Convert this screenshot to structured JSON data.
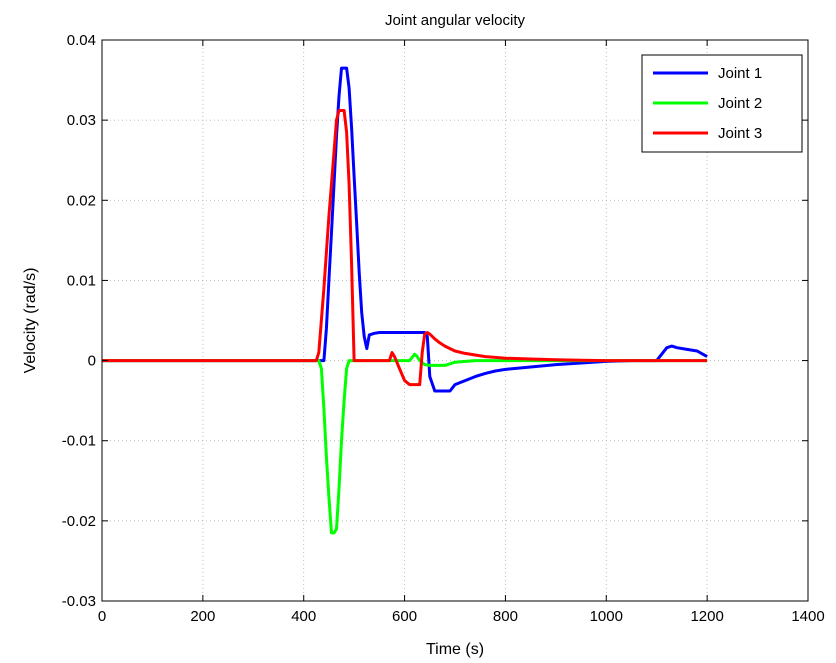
{
  "chart_data": {
    "type": "line",
    "title": "Joint angular velocity",
    "xlabel": "Time (s)",
    "ylabel": "Velocity (rad/s)",
    "xlim": [
      0,
      1400
    ],
    "ylim": [
      -0.03,
      0.04
    ],
    "xticks": [
      0,
      200,
      400,
      600,
      800,
      1000,
      1200,
      1400
    ],
    "yticks": [
      -0.03,
      -0.02,
      -0.01,
      0,
      0.01,
      0.02,
      0.03,
      0.04
    ],
    "xtick_labels": [
      "0",
      "200",
      "400",
      "600",
      "800",
      "1000",
      "1200",
      "1400"
    ],
    "ytick_labels": [
      "-0.03",
      "-0.02",
      "-0.01",
      "0",
      "0.01",
      "0.02",
      "0.03",
      "0.04"
    ],
    "grid": true,
    "legend_position": "top-right",
    "series": [
      {
        "name": "Joint 1",
        "color": "#0000ff",
        "x": [
          0,
          440,
          445,
          450,
          455,
          460,
          465,
          470,
          475,
          480,
          485,
          490,
          495,
          500,
          505,
          510,
          515,
          520,
          525,
          530,
          540,
          550,
          560,
          570,
          580,
          590,
          600,
          610,
          620,
          630,
          640,
          645,
          650,
          660,
          670,
          680,
          690,
          700,
          720,
          740,
          760,
          780,
          800,
          850,
          900,
          950,
          1000,
          1050,
          1100,
          1120,
          1130,
          1140,
          1160,
          1180,
          1200
        ],
        "y": [
          0,
          0,
          0.004,
          0.01,
          0.016,
          0.022,
          0.028,
          0.033,
          0.0365,
          0.0365,
          0.0365,
          0.034,
          0.029,
          0.023,
          0.017,
          0.011,
          0.006,
          0.003,
          0.0015,
          0.0032,
          0.0034,
          0.0035,
          0.0035,
          0.0035,
          0.0035,
          0.0035,
          0.0035,
          0.0035,
          0.0035,
          0.0035,
          0.0035,
          0.003,
          -0.002,
          -0.0038,
          -0.0038,
          -0.0038,
          -0.0038,
          -0.003,
          -0.0025,
          -0.002,
          -0.0016,
          -0.0013,
          -0.0011,
          -0.0008,
          -0.0005,
          -0.0003,
          -0.0001,
          0,
          0,
          0.0016,
          0.0018,
          0.0016,
          0.0014,
          0.0012,
          0.0005
        ]
      },
      {
        "name": "Joint 2",
        "color": "#00ff00",
        "x": [
          0,
          430,
          435,
          440,
          445,
          450,
          455,
          460,
          465,
          470,
          475,
          480,
          485,
          490,
          495,
          500,
          550,
          600,
          610,
          620,
          625,
          630,
          640,
          650,
          660,
          670,
          680,
          690,
          700,
          720,
          740,
          1200
        ],
        "y": [
          0,
          0,
          -0.001,
          -0.006,
          -0.012,
          -0.017,
          -0.0215,
          -0.0215,
          -0.021,
          -0.016,
          -0.01,
          -0.005,
          -0.001,
          0,
          0,
          0,
          0,
          0,
          0,
          0.0008,
          0.0005,
          0,
          -0.0005,
          -0.0006,
          -0.0006,
          -0.0006,
          -0.0006,
          -0.0004,
          -0.0002,
          -0.0001,
          0,
          0
        ]
      },
      {
        "name": "Joint 3",
        "color": "#ff0000",
        "x": [
          0,
          425,
          430,
          440,
          450,
          460,
          465,
          470,
          475,
          480,
          485,
          490,
          495,
          500,
          510,
          560,
          570,
          575,
          580,
          590,
          600,
          610,
          620,
          630,
          635,
          640,
          645,
          650,
          660,
          670,
          680,
          690,
          700,
          720,
          740,
          760,
          780,
          800,
          850,
          900,
          950,
          1000,
          1050,
          1200
        ],
        "y": [
          0,
          0,
          0.001,
          0.009,
          0.018,
          0.026,
          0.03,
          0.0312,
          0.0312,
          0.0312,
          0.0285,
          0.022,
          0.012,
          0,
          0,
          0,
          0,
          0.001,
          0.0005,
          -0.001,
          -0.0025,
          -0.003,
          -0.003,
          -0.003,
          0.001,
          0.0033,
          0.0035,
          0.0033,
          0.0027,
          0.0022,
          0.0018,
          0.0015,
          0.0012,
          0.0009,
          0.0007,
          0.0005,
          0.0004,
          0.0003,
          0.0002,
          0.0001,
          5e-05,
          0,
          0,
          0
        ]
      }
    ]
  }
}
